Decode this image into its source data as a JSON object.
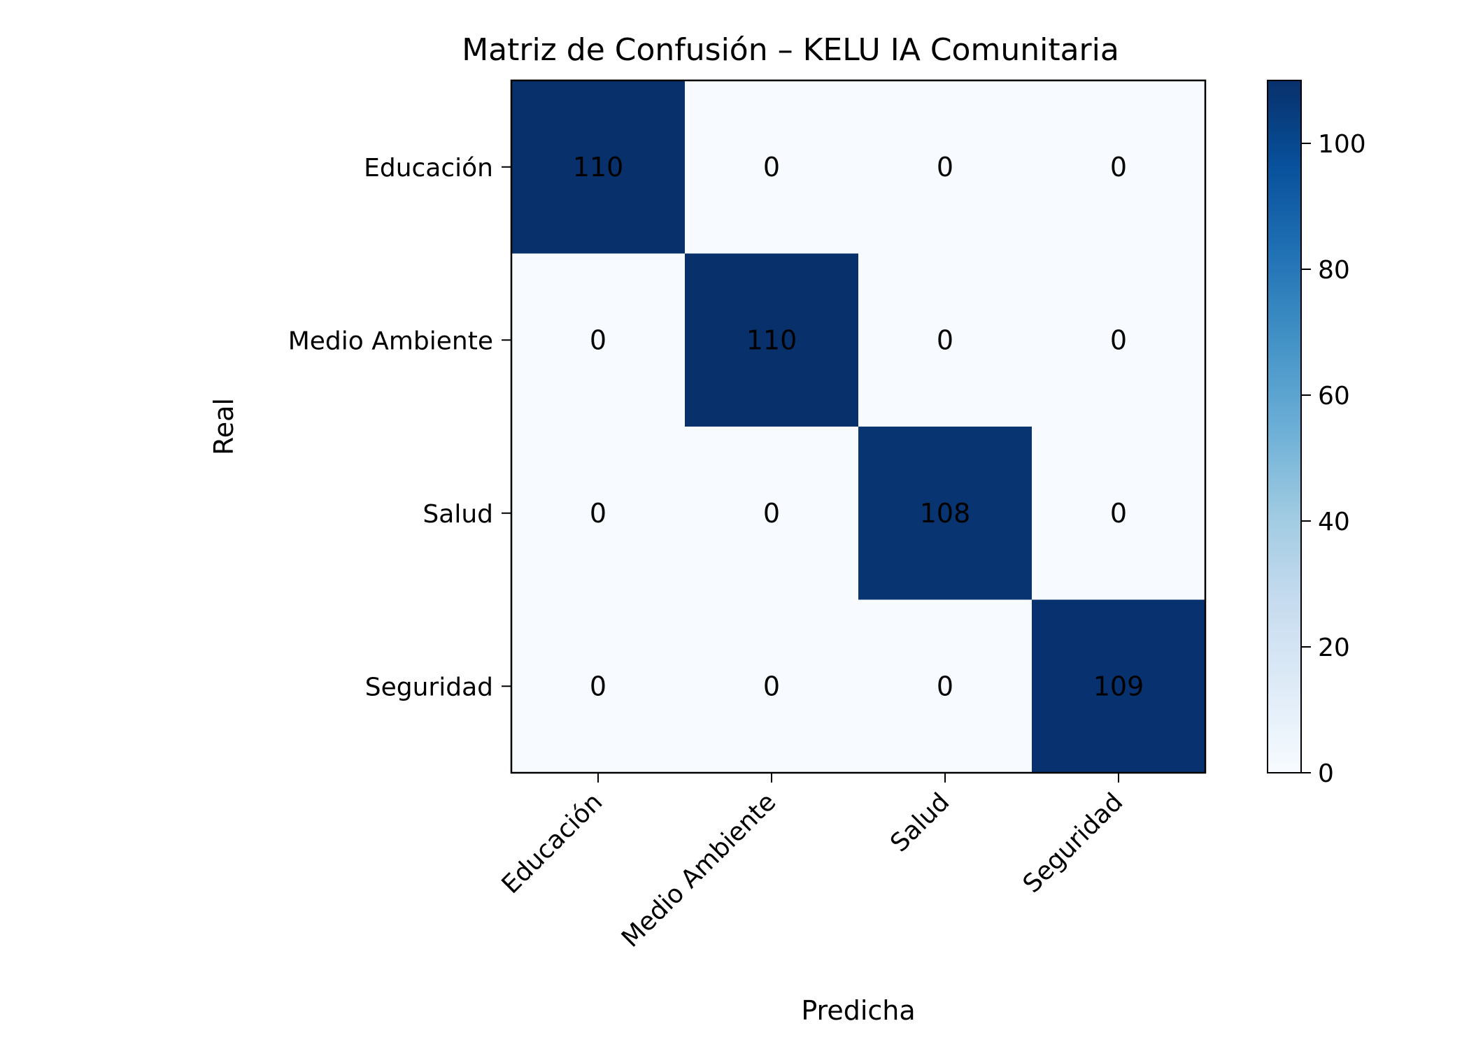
{
  "chart_data": {
    "type": "heatmap",
    "title": "Matriz de Confusión – KELU IA Comunitaria",
    "xlabel": "Predicha",
    "ylabel": "Real",
    "x_categories": [
      "Educación",
      "Medio Ambiente",
      "Salud",
      "Seguridad"
    ],
    "y_categories": [
      "Educación",
      "Medio Ambiente",
      "Salud",
      "Seguridad"
    ],
    "matrix": [
      [
        110,
        0,
        0,
        0
      ],
      [
        0,
        110,
        0,
        0
      ],
      [
        0,
        0,
        108,
        0
      ],
      [
        0,
        0,
        0,
        109
      ]
    ],
    "colormap": "Blues",
    "colorbar": {
      "range": [
        0,
        110
      ],
      "ticks": [
        0,
        20,
        40,
        60,
        80,
        100
      ]
    },
    "grid": false
  }
}
